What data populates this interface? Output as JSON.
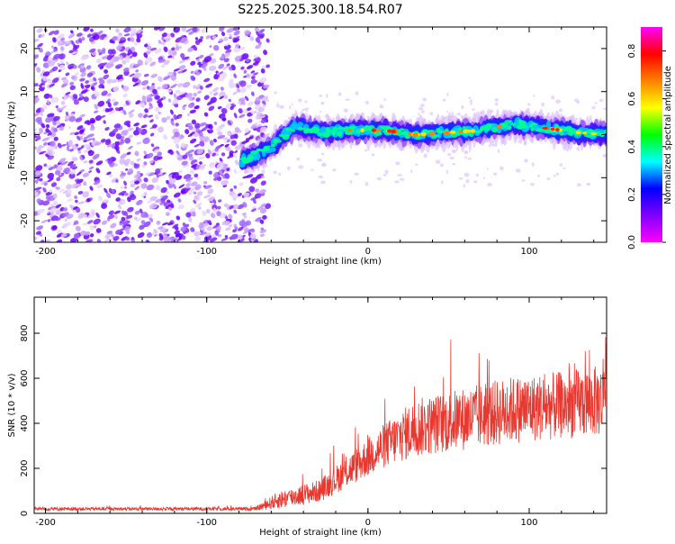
{
  "title": "S225.2025.300.18.54.R07",
  "chart_data": [
    {
      "type": "heatmap",
      "name": "spectrogram",
      "xlabel": "Height of straight line (km)",
      "ylabel": "Frequency (Hz)",
      "xlim": [
        -207,
        148
      ],
      "ylim": [
        -25,
        25
      ],
      "xticks": [
        -200,
        -100,
        0,
        100
      ],
      "yticks": [
        -20,
        -10,
        0,
        10,
        20
      ],
      "colorbar": {
        "label": "Normalized spectral amplitude",
        "range": [
          0,
          0.9
        ],
        "ticks": [
          0.0,
          0.2,
          0.4,
          0.6,
          0.8
        ],
        "colors": [
          "#ff00ff",
          "#8000ff",
          "#0000ff",
          "#00ffff",
          "#00ff00",
          "#ffff00",
          "#ff8000",
          "#ff0000",
          "#ff00ff"
        ]
      },
      "noise_region_km": [
        -207,
        -70
      ],
      "signal_band": {
        "start_km": -78,
        "center_hz": [
          {
            "x": -78,
            "f": -6
          },
          {
            "x": -60,
            "f": -3
          },
          {
            "x": -45,
            "f": 2
          },
          {
            "x": -30,
            "f": 0.5
          },
          {
            "x": -10,
            "f": 1
          },
          {
            "x": 10,
            "f": 1
          },
          {
            "x": 30,
            "f": 0
          },
          {
            "x": 50,
            "f": 0.5
          },
          {
            "x": 70,
            "f": 1
          },
          {
            "x": 90,
            "f": 2.5
          },
          {
            "x": 110,
            "f": 1.5
          },
          {
            "x": 130,
            "f": 0.5
          },
          {
            "x": 148,
            "f": 0
          }
        ]
      }
    },
    {
      "type": "line",
      "name": "snr",
      "xlabel": "Height of straight line (km)",
      "ylabel": "SNR (10 * v/v)",
      "xlim": [
        -207,
        148
      ],
      "ylim": [
        0,
        960
      ],
      "xticks": [
        -200,
        -100,
        0,
        100
      ],
      "yticks": [
        0,
        200,
        400,
        600,
        800
      ],
      "color": "#e8382f",
      "series_envelope": [
        {
          "x": -207,
          "mean": 20,
          "spread": 15
        },
        {
          "x": -70,
          "mean": 20,
          "spread": 15
        },
        {
          "x": -55,
          "mean": 60,
          "spread": 80
        },
        {
          "x": -30,
          "mean": 100,
          "spread": 100
        },
        {
          "x": -10,
          "mean": 200,
          "spread": 150
        },
        {
          "x": 10,
          "mean": 300,
          "spread": 200
        },
        {
          "x": 30,
          "mean": 380,
          "spread": 260
        },
        {
          "x": 60,
          "mean": 420,
          "spread": 280
        },
        {
          "x": 90,
          "mean": 460,
          "spread": 300
        },
        {
          "x": 120,
          "mean": 480,
          "spread": 300
        },
        {
          "x": 145,
          "mean": 500,
          "spread": 320
        },
        {
          "x": 148,
          "mean": 700,
          "spread": 400
        }
      ]
    }
  ]
}
